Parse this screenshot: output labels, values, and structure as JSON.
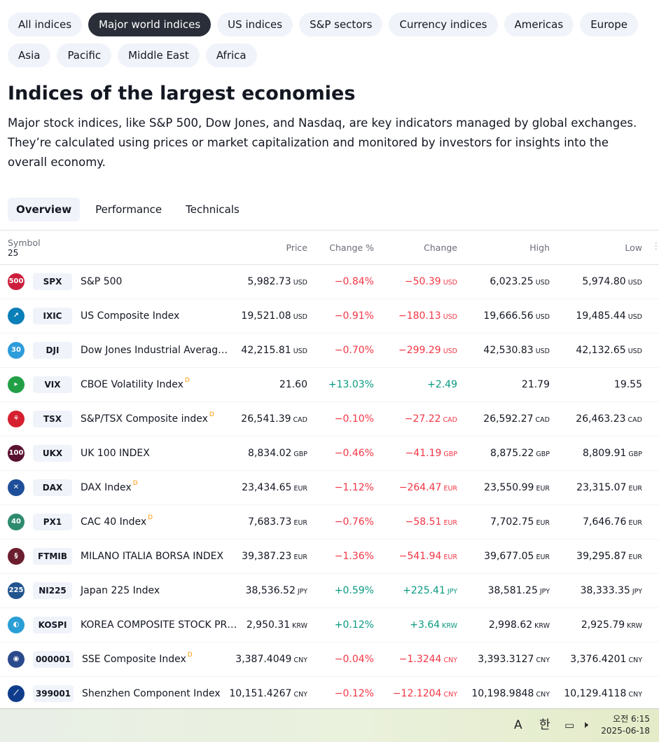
{
  "chips": [
    "All indices",
    "Major world indices",
    "US indices",
    "S&P sectors",
    "Currency indices",
    "Americas",
    "Europe",
    "Asia",
    "Pacific",
    "Middle East",
    "Africa"
  ],
  "active_chip": "Major world indices",
  "heading": "Indices of the largest economies",
  "description": "Major stock indices, like S&P 500, Dow Jones, and Nasdaq, are key indicators managed by global exchanges. They’re calculated using prices or market capitalization and monitored by investors for insights into the overall economy.",
  "tabs": [
    "Overview",
    "Performance",
    "Technicals"
  ],
  "table": {
    "symbol_label": "Symbol",
    "symbol_count": "25",
    "columns": {
      "price": "Price",
      "change_pct": "Change %",
      "change": "Change",
      "high": "High",
      "low": "Low"
    },
    "rows": [
      {
        "logo": "500",
        "logo_color": "#cc1e3c",
        "ticker": "SPX",
        "name": "S&P 500",
        "d": "",
        "price": "5,982.73",
        "price_cur": "USD",
        "pct": "−0.84%",
        "chg": "−50.39",
        "chg_cur": "USD",
        "high": "6,023.25",
        "high_cur": "USD",
        "low": "5,974.80",
        "low_cur": "USD",
        "dir": "neg"
      },
      {
        "logo": "↗",
        "logo_color": "#0a7fb8",
        "ticker": "IXIC",
        "name": "US Composite Index",
        "d": "",
        "price": "19,521.08",
        "price_cur": "USD",
        "pct": "−0.91%",
        "chg": "−180.13",
        "chg_cur": "USD",
        "high": "19,666.56",
        "high_cur": "USD",
        "low": "19,485.44",
        "low_cur": "USD",
        "dir": "neg"
      },
      {
        "logo": "30",
        "logo_color": "#2d9cdb",
        "ticker": "DJI",
        "name": "Dow Jones Industrial Averag…",
        "d": "",
        "price": "42,215.81",
        "price_cur": "USD",
        "pct": "−0.70%",
        "chg": "−299.29",
        "chg_cur": "USD",
        "high": "42,530.83",
        "high_cur": "USD",
        "low": "42,132.65",
        "low_cur": "USD",
        "dir": "neg"
      },
      {
        "logo": "▸",
        "logo_color": "#22a046",
        "ticker": "VIX",
        "name": "CBOE Volatility Index",
        "d": "D",
        "price": "21.60",
        "price_cur": "",
        "pct": "+13.03%",
        "chg": "+2.49",
        "chg_cur": "",
        "high": "21.79",
        "high_cur": "",
        "low": "19.55",
        "low_cur": "",
        "dir": "pos"
      },
      {
        "logo": "⚘",
        "logo_color": "#d5202f",
        "ticker": "TSX",
        "name": "S&P/TSX Composite index",
        "d": "D",
        "price": "26,541.39",
        "price_cur": "CAD",
        "pct": "−0.10%",
        "chg": "−27.22",
        "chg_cur": "CAD",
        "high": "26,592.27",
        "high_cur": "CAD",
        "low": "26,463.23",
        "low_cur": "CAD",
        "dir": "neg"
      },
      {
        "logo": "100",
        "logo_color": "#5a1230",
        "ticker": "UKX",
        "name": "UK 100 INDEX",
        "d": "",
        "price": "8,834.02",
        "price_cur": "GBP",
        "pct": "−0.46%",
        "chg": "−41.19",
        "chg_cur": "GBP",
        "high": "8,875.22",
        "high_cur": "GBP",
        "low": "8,809.91",
        "low_cur": "GBP",
        "dir": "neg"
      },
      {
        "logo": "✕",
        "logo_color": "#1f4f9a",
        "ticker": "DAX",
        "name": "DAX Index",
        "d": "D",
        "price": "23,434.65",
        "price_cur": "EUR",
        "pct": "−1.12%",
        "chg": "−264.47",
        "chg_cur": "EUR",
        "high": "23,550.99",
        "high_cur": "EUR",
        "low": "23,315.07",
        "low_cur": "EUR",
        "dir": "neg"
      },
      {
        "logo": "40",
        "logo_color": "#2e8b6e",
        "ticker": "PX1",
        "name": "CAC 40 Index",
        "d": "D",
        "price": "7,683.73",
        "price_cur": "EUR",
        "pct": "−0.76%",
        "chg": "−58.51",
        "chg_cur": "EUR",
        "high": "7,702.75",
        "high_cur": "EUR",
        "low": "7,646.76",
        "low_cur": "EUR",
        "dir": "neg"
      },
      {
        "logo": "§",
        "logo_color": "#6b1e2e",
        "ticker": "FTMIB",
        "name": "MILANO ITALIA BORSA INDEX",
        "d": "",
        "price": "39,387.23",
        "price_cur": "EUR",
        "pct": "−1.36%",
        "chg": "−541.94",
        "chg_cur": "EUR",
        "high": "39,677.05",
        "high_cur": "EUR",
        "low": "39,295.87",
        "low_cur": "EUR",
        "dir": "neg"
      },
      {
        "logo": "225",
        "logo_color": "#22548f",
        "ticker": "NI225",
        "name": "Japan 225 Index",
        "d": "",
        "price": "38,536.52",
        "price_cur": "JPY",
        "pct": "+0.59%",
        "chg": "+225.41",
        "chg_cur": "JPY",
        "high": "38,581.25",
        "high_cur": "JPY",
        "low": "38,333.35",
        "low_cur": "JPY",
        "dir": "pos"
      },
      {
        "logo": "◐",
        "logo_color": "#2a9fd6",
        "ticker": "KOSPI",
        "name": "KOREA COMPOSITE STOCK PR…",
        "d": "",
        "price": "2,950.31",
        "price_cur": "KRW",
        "pct": "+0.12%",
        "chg": "+3.64",
        "chg_cur": "KRW",
        "high": "2,998.62",
        "high_cur": "KRW",
        "low": "2,925.79",
        "low_cur": "KRW",
        "dir": "pos"
      },
      {
        "logo": "◉",
        "logo_color": "#2b4a8c",
        "ticker": "000001",
        "name": "SSE Composite Index",
        "d": "D",
        "price": "3,387.4049",
        "price_cur": "CNY",
        "pct": "−0.04%",
        "chg": "−1.3244",
        "chg_cur": "CNY",
        "high": "3,393.3127",
        "high_cur": "CNY",
        "low": "3,376.4201",
        "low_cur": "CNY",
        "dir": "neg"
      },
      {
        "logo": "⟋",
        "logo_color": "#0f3d8c",
        "ticker": "399001",
        "name": "Shenzhen Component Index",
        "d": "",
        "price": "10,151.4267",
        "price_cur": "CNY",
        "pct": "−0.12%",
        "chg": "−12.1204",
        "chg_cur": "CNY",
        "high": "10,198.9848",
        "high_cur": "CNY",
        "low": "10,129.4118",
        "low_cur": "CNY",
        "dir": "neg"
      }
    ]
  },
  "taskbar": {
    "ime_mode": "A",
    "ime_lang": "한",
    "time": "오전 6:15",
    "date": "2025-06-18"
  },
  "colors": {
    "negative": "#f23645",
    "positive": "#089981",
    "active_chip": "#2a2e39",
    "chip_bg": "#f0f3fa",
    "d_badge": "#ff9800"
  }
}
